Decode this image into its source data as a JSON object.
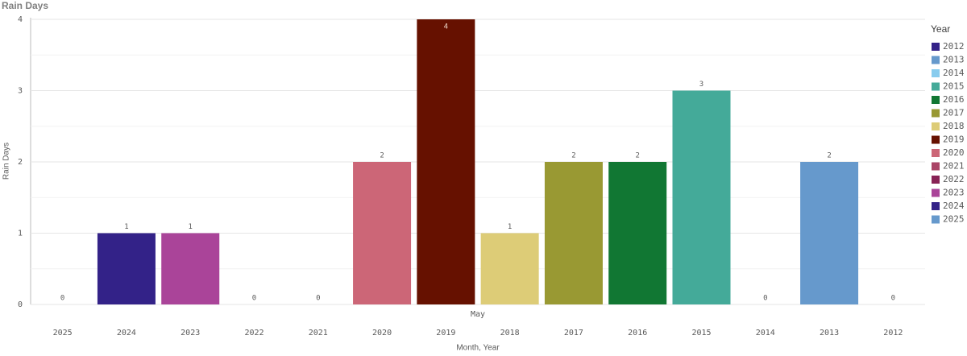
{
  "chart_data": {
    "type": "bar",
    "title": "Rain Days",
    "y_label": "Rain Days",
    "x_label": "Month, Year",
    "group_label": "May",
    "categories": [
      "2025",
      "2024",
      "2023",
      "2022",
      "2021",
      "2020",
      "2019",
      "2018",
      "2017",
      "2016",
      "2015",
      "2014",
      "2013",
      "2012"
    ],
    "values": [
      0,
      1,
      1,
      0,
      0,
      2,
      4,
      1,
      2,
      2,
      3,
      0,
      2,
      0
    ],
    "ylim": [
      0,
      4
    ],
    "yticks": [
      0,
      1,
      2,
      3,
      4
    ],
    "grid": true,
    "legend": {
      "title": "Year",
      "position": "right",
      "items": [
        {
          "name": "2012",
          "color": "#332288"
        },
        {
          "name": "2013",
          "color": "#6699cc"
        },
        {
          "name": "2014",
          "color": "#88ccee"
        },
        {
          "name": "2015",
          "color": "#44aa99"
        },
        {
          "name": "2016",
          "color": "#117733"
        },
        {
          "name": "2017",
          "color": "#999933"
        },
        {
          "name": "2018",
          "color": "#ddcc77"
        },
        {
          "name": "2019",
          "color": "#661100"
        },
        {
          "name": "2020",
          "color": "#cc6677"
        },
        {
          "name": "2021",
          "color": "#aa4466"
        },
        {
          "name": "2022",
          "color": "#882255"
        },
        {
          "name": "2023",
          "color": "#aa4499"
        },
        {
          "name": "2024",
          "color": "#332288"
        },
        {
          "name": "2025",
          "color": "#6699cc"
        }
      ]
    }
  }
}
